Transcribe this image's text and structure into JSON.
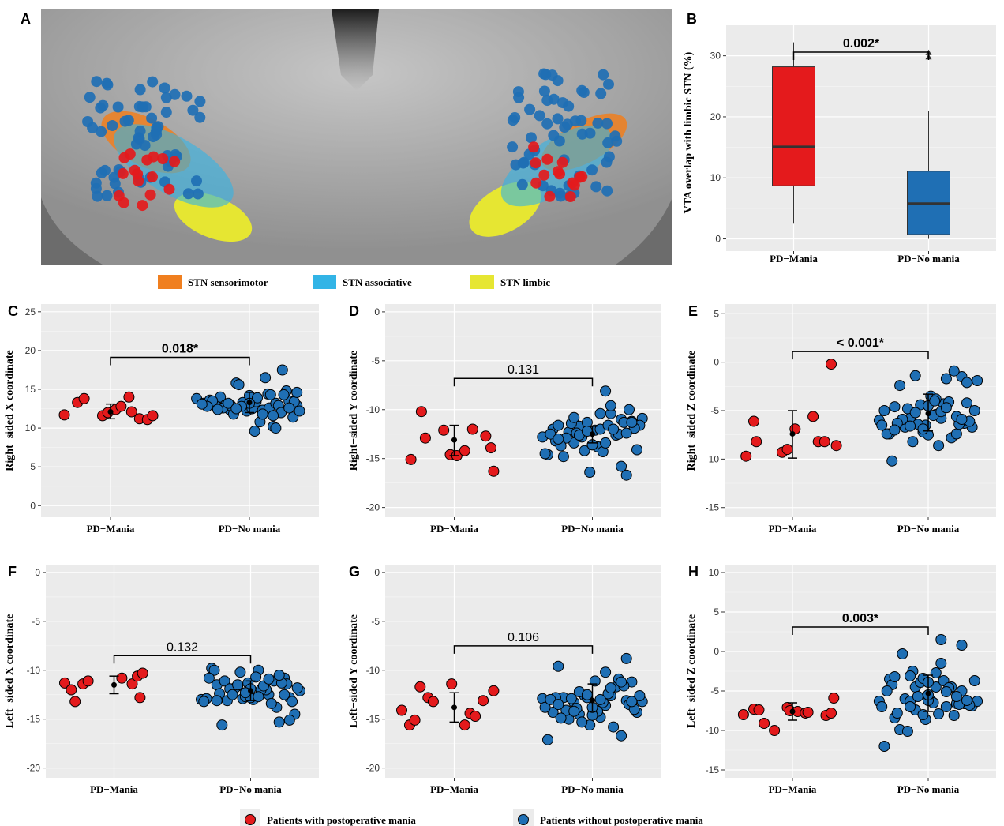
{
  "colors": {
    "mania": "#e41a1c",
    "no_mania": "#1f6fb4",
    "panel_bg": "#ebebeb",
    "grid": "#ffffff",
    "sensorimotor": "#f07f1f",
    "associative": "#32b4e6",
    "limbic": "#e6e632"
  },
  "panel_A": {
    "label": "A",
    "legend": [
      "STN sensorimotor",
      "STN associative",
      "STN limbic"
    ]
  },
  "bottom_legend": [
    "Patients with postoperative mania",
    "Patients without postoperative mania"
  ],
  "chart_data": [
    {
      "panel": "B",
      "type": "box",
      "categories": [
        "PD−Mania",
        "PD−No mania"
      ],
      "ylabel": "VTA overlap with limbic STN (%)",
      "ylim": [
        -2,
        35
      ],
      "yticks": [
        0,
        10,
        20,
        30
      ],
      "pvalue": "0.002*",
      "pvalue_bold": true,
      "boxes": [
        {
          "name": "PD−Mania",
          "min": 2.5,
          "q1": 8.7,
          "median": 15.1,
          "q3": 28.2,
          "max": 32.2,
          "outliers": []
        },
        {
          "name": "PD−No mania",
          "min": 0,
          "q1": 0.7,
          "median": 5.8,
          "q3": 11.1,
          "max": 21.0,
          "outliers": [
            29.8,
            30.5
          ]
        }
      ]
    },
    {
      "panel": "C",
      "type": "scatter",
      "categories": [
        "PD−Mania",
        "PD−No mania"
      ],
      "ylabel": "Right−sided X coordinate",
      "ylim": [
        -1.5,
        26
      ],
      "yticks": [
        0,
        5,
        10,
        15,
        20,
        25
      ],
      "pvalue": "0.018*",
      "pvalue_bold": true,
      "summary": [
        {
          "mean": 12.1,
          "low": 11.2,
          "high": 13.1
        },
        {
          "mean": 13.3,
          "low": 12.0,
          "high": 14.6
        }
      ],
      "series": [
        {
          "name": "PD−Mania",
          "x": [
            -0.35,
            -0.25,
            -0.2,
            -0.06,
            -0.02,
            0.04,
            0.08,
            0.14,
            0.16,
            0.22,
            0.28,
            0.32
          ],
          "y": [
            11.7,
            13.3,
            13.8,
            11.6,
            12.0,
            12.4,
            12.8,
            14.0,
            12.1,
            11.2,
            11.1,
            11.6
          ]
        },
        {
          "name": "PD−No mania",
          "x": [
            -0.4,
            -0.35,
            -0.3,
            -0.25,
            -0.22,
            -0.18,
            -0.15,
            -0.12,
            -0.1,
            -0.05,
            -0.02,
            0.0,
            0.02,
            0.05,
            0.08,
            0.1,
            0.12,
            0.15,
            0.18,
            0.2,
            0.22,
            0.25,
            0.28,
            0.3,
            0.33,
            0.36,
            0.38,
            -0.28,
            -0.2,
            -0.08,
            0.06,
            0.14,
            0.24,
            0.34,
            -0.32,
            -0.14,
            0.0,
            0.16,
            0.3,
            -0.24,
            -0.06,
            0.1,
            0.26,
            -0.16,
            0.04,
            0.2,
            0.36,
            -0.36,
            -0.1,
            0.18
          ],
          "y": [
            13.8,
            13.2,
            13.6,
            12.8,
            14.0,
            13.0,
            12.4,
            11.8,
            15.8,
            13.3,
            12.2,
            14.2,
            12.5,
            13.4,
            10.8,
            12.3,
            16.5,
            12.6,
            10.2,
            13.2,
            12.9,
            17.5,
            14.8,
            13.5,
            11.4,
            12.9,
            12.2,
            13.5,
            12.6,
            15.6,
            13.9,
            14.4,
            12.0,
            13.4,
            12.8,
            12.9,
            13.2,
            14.3,
            12.6,
            12.4,
            12.8,
            11.8,
            14.3,
            13.2,
            9.6,
            10.0,
            14.6,
            13.1,
            12.5,
            11.6
          ]
        }
      ]
    },
    {
      "panel": "D",
      "type": "scatter",
      "categories": [
        "PD−Mania",
        "PD−No mania"
      ],
      "ylabel": "Right−sided Y coordinate",
      "ylim": [
        -21,
        0.8
      ],
      "yticks": [
        0,
        -5,
        -10,
        -15,
        -20
      ],
      "pvalue": "0.131",
      "pvalue_bold": false,
      "summary": [
        {
          "mean": -13.1,
          "low": -14.7,
          "high": -11.6
        },
        {
          "mean": -12.5,
          "low": -13.4,
          "high": -11.7
        }
      ],
      "series": [
        {
          "name": "PD−Mania",
          "x": [
            -0.33,
            -0.25,
            -0.22,
            -0.08,
            -0.03,
            0.02,
            0.08,
            0.14,
            0.24,
            0.28,
            0.3
          ],
          "y": [
            -15.1,
            -10.2,
            -12.9,
            -12.1,
            -14.6,
            -14.7,
            -14.2,
            -12.0,
            -12.7,
            -13.9,
            -16.3
          ]
        },
        {
          "name": "PD−No mania",
          "x": [
            -0.38,
            -0.34,
            -0.3,
            -0.26,
            -0.22,
            -0.18,
            -0.14,
            -0.1,
            -0.06,
            -0.02,
            0.02,
            0.06,
            0.1,
            0.14,
            0.18,
            0.22,
            0.26,
            0.3,
            0.34,
            0.38,
            -0.36,
            -0.28,
            -0.2,
            -0.12,
            -0.04,
            0.04,
            0.12,
            0.2,
            0.28,
            0.36,
            -0.32,
            -0.24,
            -0.16,
            -0.08,
            0.0,
            0.08,
            0.16,
            0.24,
            0.32,
            -0.26,
            -0.1,
            0.06,
            0.22,
            -0.14,
            0.1,
            0.3,
            0.0,
            -0.04,
            0.14,
            0.26
          ],
          "y": [
            -12.8,
            -14.6,
            -12.0,
            -11.6,
            -14.8,
            -12.3,
            -13.4,
            -11.7,
            -14.2,
            -16.4,
            -12.1,
            -12.0,
            -8.1,
            -10.4,
            -12.6,
            -11.0,
            -16.7,
            -11.2,
            -14.1,
            -10.9,
            -14.5,
            -13.2,
            -12.9,
            -12.4,
            -11.3,
            -13.8,
            -11.6,
            -12.5,
            -10.0,
            -11.6,
            -12.5,
            -13.7,
            -11.4,
            -12.8,
            -13.6,
            -14.3,
            -12.0,
            -11.3,
            -11.9,
            -13.0,
            -12.6,
            -10.4,
            -15.8,
            -10.8,
            -13.4,
            -11.3,
            -13.6,
            -12.2,
            -9.6,
            -12.4
          ]
        }
      ]
    },
    {
      "panel": "E",
      "type": "scatter",
      "categories": [
        "PD−Mania",
        "PD−No mania"
      ],
      "ylabel": "Right−sided Z coordinate",
      "ylim": [
        -16,
        6
      ],
      "yticks": [
        5,
        0,
        -5,
        -10,
        -15
      ],
      "pvalue": "< 0.001*",
      "pvalue_bold": true,
      "summary": [
        {
          "mean": -7.4,
          "low": -9.9,
          "high": -5.0
        },
        {
          "mean": -5.3,
          "low": -7.1,
          "high": -3.3
        }
      ],
      "series": [
        {
          "name": "PD−Mania",
          "x": [
            -0.36,
            -0.3,
            -0.28,
            -0.08,
            -0.04,
            0.02,
            0.16,
            0.2,
            0.25,
            0.3,
            0.34
          ],
          "y": [
            -9.7,
            -6.1,
            -8.2,
            -9.3,
            -9.0,
            -6.9,
            -5.6,
            -8.2,
            -8.2,
            -0.2,
            -8.6
          ]
        },
        {
          "name": "PD−No mania",
          "x": [
            -0.38,
            -0.34,
            -0.3,
            -0.26,
            -0.22,
            -0.18,
            -0.14,
            -0.1,
            -0.06,
            -0.02,
            0.02,
            0.06,
            0.1,
            0.14,
            0.18,
            0.22,
            0.26,
            0.3,
            0.34,
            0.38,
            -0.36,
            -0.28,
            -0.2,
            -0.12,
            -0.04,
            0.04,
            0.12,
            0.2,
            0.28,
            0.36,
            -0.32,
            -0.24,
            -0.16,
            -0.08,
            0.0,
            0.08,
            0.16,
            0.24,
            0.32,
            -0.26,
            -0.1,
            0.06,
            0.22,
            -0.14,
            0.1,
            0.3,
            0.0,
            -0.04,
            0.14,
            0.26,
            0.05
          ],
          "y": [
            -6.0,
            -5.0,
            -7.4,
            -4.6,
            -2.4,
            -6.7,
            -5.8,
            -1.4,
            -4.4,
            -6.5,
            -3.5,
            -5.4,
            -5.8,
            -1.7,
            -7.8,
            -7.4,
            -1.5,
            -4.2,
            -6.7,
            -1.9,
            -6.5,
            -10.2,
            -5.9,
            -8.2,
            -7.2,
            -5.5,
            -4.3,
            -0.9,
            -6.3,
            -5.0,
            -7.4,
            -6.3,
            -4.8,
            -6.4,
            -4.5,
            -8.6,
            -4.1,
            -6.4,
            -6.1,
            -7.0,
            -5.2,
            -3.8,
            -5.6,
            -6.6,
            -5.1,
            -2.1,
            -7.5,
            -6.9,
            -4.7,
            -5.9,
            -4.0
          ]
        }
      ]
    },
    {
      "panel": "F",
      "type": "scatter",
      "categories": [
        "PD−Mania",
        "PD−No mania"
      ],
      "ylabel": "Left−sided X coordinate",
      "ylim": [
        -21,
        0.8
      ],
      "yticks": [
        0,
        -5,
        -10,
        -15,
        -20
      ],
      "pvalue": "0.132",
      "pvalue_bold": false,
      "summary": [
        {
          "mean": -11.5,
          "low": -12.4,
          "high": -10.6
        },
        {
          "mean": -12.1,
          "low": -13.1,
          "high": -11.1
        }
      ],
      "series": [
        {
          "name": "PD−Mania",
          "x": [
            -0.38,
            -0.33,
            -0.3,
            -0.24,
            -0.2,
            0.06,
            0.14,
            0.18,
            0.2,
            0.22
          ],
          "y": [
            -11.3,
            -12.0,
            -13.2,
            -11.4,
            -11.1,
            -10.8,
            -11.4,
            -10.6,
            -12.8,
            -10.3
          ]
        },
        {
          "name": "PD−No mania",
          "x": [
            -0.38,
            -0.34,
            -0.3,
            -0.26,
            -0.22,
            -0.18,
            -0.14,
            -0.1,
            -0.06,
            -0.02,
            0.02,
            0.06,
            0.1,
            0.14,
            0.18,
            0.22,
            0.26,
            0.3,
            0.34,
            0.38,
            -0.36,
            -0.28,
            -0.2,
            -0.12,
            -0.04,
            0.04,
            0.12,
            0.2,
            0.28,
            0.36,
            -0.32,
            -0.24,
            -0.16,
            -0.08,
            0.0,
            0.08,
            0.16,
            0.24,
            0.32,
            -0.26,
            -0.1,
            0.06,
            0.22,
            -0.14,
            0.1,
            0.3,
            0.0,
            -0.04,
            0.14,
            0.26
          ],
          "y": [
            -13.0,
            -12.9,
            -9.8,
            -11.5,
            -15.6,
            -13.1,
            -12.2,
            -11.6,
            -12.9,
            -11.3,
            -13.0,
            -10.0,
            -12.0,
            -12.5,
            -11.1,
            -15.3,
            -10.8,
            -12.8,
            -14.5,
            -12.1,
            -13.2,
            -10.0,
            -11.1,
            -11.8,
            -12.7,
            -10.7,
            -12.0,
            -13.8,
            -11.4,
            -11.8,
            -10.8,
            -12.4,
            -11.9,
            -10.2,
            -12.8,
            -12.0,
            -13.4,
            -11.3,
            -13.2,
            -13.1,
            -11.5,
            -12.7,
            -10.5,
            -12.5,
            -11.6,
            -15.1,
            -11.9,
            -12.3,
            -10.9,
            -12.5
          ]
        }
      ]
    },
    {
      "panel": "G",
      "type": "scatter",
      "categories": [
        "PD−Mania",
        "PD−No mania"
      ],
      "ylabel": "Left−sided Y coordinate",
      "ylim": [
        -21,
        0.8
      ],
      "yticks": [
        0,
        -5,
        -10,
        -15,
        -20
      ],
      "pvalue": "0.106",
      "pvalue_bold": false,
      "summary": [
        {
          "mean": -13.8,
          "low": -15.3,
          "high": -12.3
        },
        {
          "mean": -13.1,
          "low": -14.2,
          "high": -11.4
        }
      ],
      "series": [
        {
          "name": "PD−Mania",
          "x": [
            -0.4,
            -0.34,
            -0.3,
            -0.26,
            -0.2,
            -0.16,
            -0.02,
            0.08,
            0.12,
            0.16,
            0.22,
            0.3
          ],
          "y": [
            -14.1,
            -15.6,
            -15.1,
            -11.7,
            -12.8,
            -13.2,
            -11.4,
            -15.6,
            -14.4,
            -14.7,
            -13.1,
            -12.1
          ]
        },
        {
          "name": "PD−No mania",
          "x": [
            -0.38,
            -0.34,
            -0.3,
            -0.26,
            -0.22,
            -0.18,
            -0.14,
            -0.1,
            -0.06,
            -0.02,
            0.02,
            0.06,
            0.1,
            0.14,
            0.18,
            0.22,
            0.26,
            0.3,
            0.34,
            0.38,
            -0.36,
            -0.28,
            -0.2,
            -0.12,
            -0.04,
            0.04,
            0.12,
            0.2,
            0.28,
            0.36,
            -0.32,
            -0.24,
            -0.16,
            -0.08,
            0.0,
            0.08,
            0.16,
            0.24,
            0.32,
            -0.26,
            -0.1,
            0.06,
            0.22,
            -0.14,
            0.1,
            0.3,
            0.0,
            -0.04,
            0.14,
            0.26
          ],
          "y": [
            -12.9,
            -17.1,
            -14.3,
            -9.6,
            -12.8,
            -15.0,
            -13.3,
            -14.5,
            -12.6,
            -15.6,
            -11.1,
            -14.8,
            -13.6,
            -12.6,
            -11.7,
            -16.7,
            -13.1,
            -11.2,
            -14.3,
            -13.2,
            -13.8,
            -12.8,
            -14.1,
            -13.9,
            -12.8,
            -14.2,
            -12.4,
            -10.9,
            -13.5,
            -12.6,
            -13.0,
            -14.9,
            -12.9,
            -15.3,
            -14.6,
            -13.3,
            -15.8,
            -11.6,
            -14.0,
            -13.5,
            -12.2,
            -13.0,
            -11.2,
            -14.2,
            -10.2,
            -13.2,
            -13.8,
            -12.5,
            -11.8,
            -8.8
          ]
        }
      ]
    },
    {
      "panel": "H",
      "type": "scatter",
      "categories": [
        "PD−Mania",
        "PD−No mania"
      ],
      "ylabel": "Left−sided Z coordinate",
      "ylim": [
        -16,
        11
      ],
      "yticks": [
        10,
        5,
        0,
        -5,
        -10,
        -15
      ],
      "pvalue": "0.003*",
      "pvalue_bold": true,
      "summary": [
        {
          "mean": -7.6,
          "low": -8.7,
          "high": -6.5
        },
        {
          "mean": -5.3,
          "low": -7.6,
          "high": -3.0
        }
      ],
      "series": [
        {
          "name": "PD−Mania",
          "x": [
            -0.38,
            -0.3,
            -0.26,
            -0.22,
            -0.14,
            -0.04,
            -0.02,
            0.04,
            0.1,
            0.12,
            0.26,
            0.3,
            0.32
          ],
          "y": [
            -8.0,
            -7.3,
            -7.4,
            -9.1,
            -10.0,
            -7.1,
            -7.5,
            -7.6,
            -7.8,
            -7.7,
            -8.1,
            -7.8,
            -5.9
          ]
        },
        {
          "name": "PD−No mania",
          "x": [
            -0.38,
            -0.34,
            -0.3,
            -0.26,
            -0.22,
            -0.18,
            -0.14,
            -0.1,
            -0.06,
            -0.02,
            0.02,
            0.06,
            0.1,
            0.14,
            0.18,
            0.22,
            0.26,
            0.3,
            0.34,
            0.38,
            -0.36,
            -0.28,
            -0.2,
            -0.12,
            -0.04,
            0.04,
            0.12,
            0.2,
            0.28,
            0.36,
            -0.32,
            -0.24,
            -0.16,
            -0.08,
            0.0,
            0.08,
            0.16,
            0.24,
            0.32,
            -0.26,
            -0.1,
            0.06,
            0.22,
            -0.14,
            0.1,
            0.3,
            0.0,
            -0.04,
            0.14,
            0.26,
            0.0,
            -0.14
          ],
          "y": [
            -6.3,
            -12.0,
            -3.5,
            -8.4,
            -9.9,
            -6.0,
            -6.3,
            -4.5,
            -3.9,
            -8.6,
            -6.2,
            -4.5,
            1.5,
            -7.0,
            -4.5,
            -6.6,
            -5.0,
            -6.5,
            -6.9,
            -6.3,
            -7.0,
            -4.2,
            -0.3,
            -2.5,
            -3.4,
            -6.5,
            -3.7,
            -8.1,
            -6.6,
            -3.7,
            -5.0,
            -7.8,
            -10.1,
            -5.7,
            -6.2,
            -7.9,
            -4.6,
            -6.7,
            -6.8,
            -3.2,
            -7.4,
            -2.7,
            -5.7,
            -3.1,
            -1.5,
            -6.2,
            -3.9,
            -8.0,
            -5.1,
            0.8,
            -5.5,
            -7.0
          ]
        }
      ]
    }
  ]
}
